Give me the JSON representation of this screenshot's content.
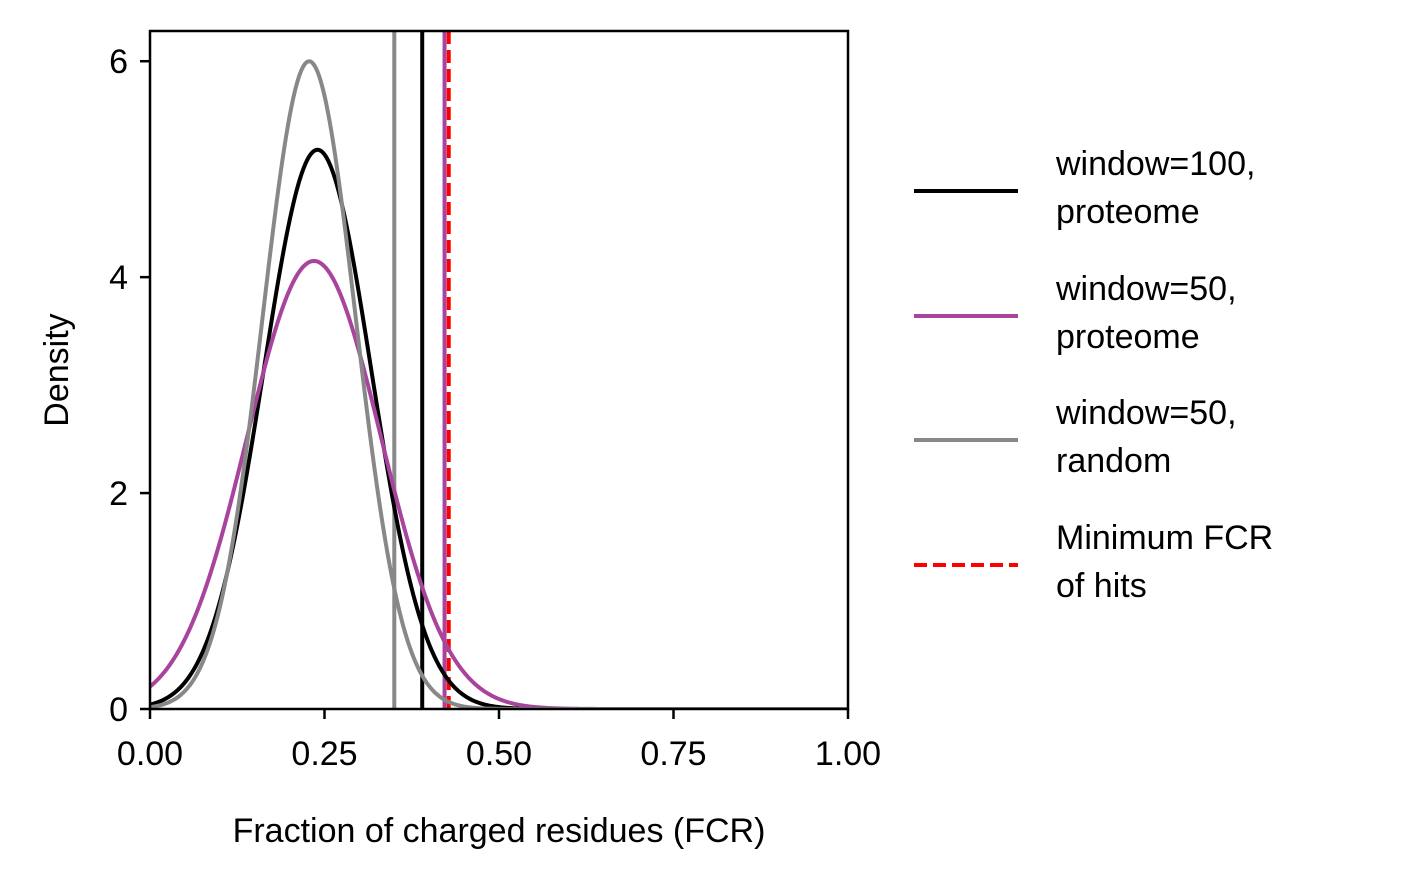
{
  "chart_data": {
    "type": "line",
    "title": "",
    "xlabel": "Fraction of charged residues (FCR)",
    "ylabel": "Density",
    "xlim": [
      0,
      1
    ],
    "ylim": [
      0,
      6.28
    ],
    "xticks": [
      0,
      0.25,
      0.5,
      0.75,
      1.0
    ],
    "xtick_labels": [
      "0.00",
      "0.25",
      "0.50",
      "0.75",
      "1.00"
    ],
    "yticks": [
      0,
      2,
      4,
      6
    ],
    "ytick_labels": [
      "0",
      "2",
      "4",
      "6"
    ],
    "grid": false,
    "legend_position": "right, outside plot",
    "series": [
      {
        "name": "window=100, proteome",
        "legend_lines": [
          "window=100,",
          "proteome"
        ],
        "color": "#000000",
        "style": "solid",
        "peak_x": 0.24,
        "peak_y": 5.18,
        "sd": 0.077,
        "vline": 0.39
      },
      {
        "name": "window=50, proteome",
        "legend_lines": [
          "window=50,",
          "proteome"
        ],
        "color": "#a8449c",
        "style": "solid",
        "peak_x": 0.235,
        "peak_y": 4.15,
        "sd": 0.096,
        "vline": 0.422
      },
      {
        "name": "window=50, random",
        "legend_lines": [
          "window=50,",
          "random"
        ],
        "color": "#888888",
        "style": "solid",
        "peak_x": 0.228,
        "peak_y": 6.0,
        "sd": 0.0665,
        "vline": 0.35
      },
      {
        "name": "Minimum FCR of hits",
        "legend_lines": [
          "Minimum FCR",
          "of hits"
        ],
        "color": "#ff0000",
        "style": "dashed",
        "vline": 0.428
      }
    ]
  }
}
